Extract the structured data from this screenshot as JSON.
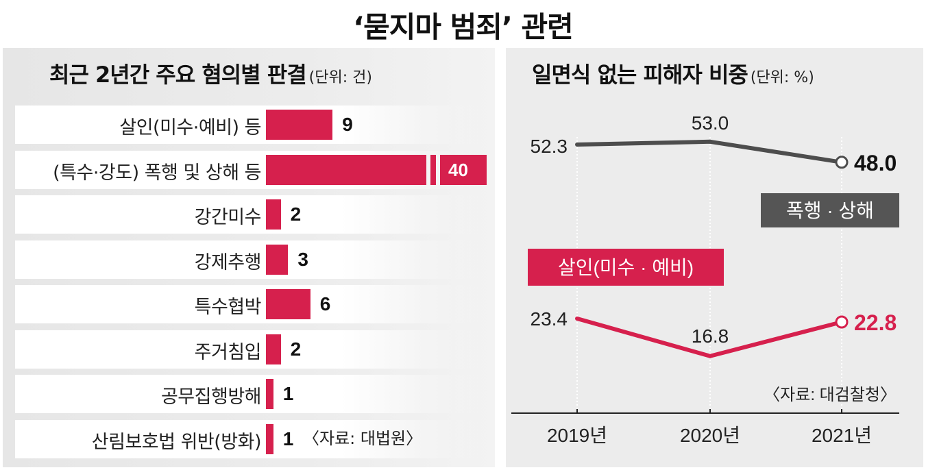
{
  "title": "‘묻지마 범죄’ 관련",
  "chart_data": [
    {
      "type": "bar",
      "title": "최근 2년간 주요 혐의별 판결",
      "unit": "(단위: 건)",
      "categories": [
        "살인(미수·예비)  등",
        "(특수·강도) 폭행 및 상해 등",
        "강간미수",
        "강제추행",
        "특수협박",
        "주거침입",
        "공무집행방해",
        "산림보호법 위반(방화)"
      ],
      "values": [
        9,
        40,
        2,
        3,
        6,
        2,
        1,
        1
      ],
      "source": "〈자료: 대법원〉",
      "bar_color": "#d6204d"
    },
    {
      "type": "line",
      "title": "일면식 없는 피해자 비중",
      "unit": "(단위: %)",
      "x": [
        "2019년",
        "2020년",
        "2021년"
      ],
      "series": [
        {
          "name": "폭행 · 상해",
          "values": [
            52.3,
            53.0,
            48.0
          ],
          "labels": [
            "52.3",
            "53.0",
            "48.0"
          ],
          "color": "#4d4d4d"
        },
        {
          "name": "살인(미수 · 예비)",
          "values": [
            23.4,
            16.8,
            22.8
          ],
          "labels": [
            "23.4",
            "16.8",
            "22.8"
          ],
          "color": "#d6204d"
        }
      ],
      "source": "〈자료: 대검찰청〉"
    }
  ]
}
